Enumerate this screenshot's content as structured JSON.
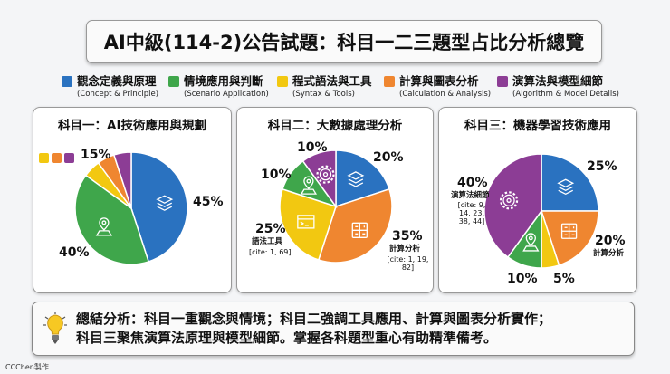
{
  "title": "AI中級(114-2)公告試題：科目一二三題型占比分析總覽",
  "legend": [
    {
      "zh": "觀念定義與原理",
      "en": "(Concept & Principle)",
      "color": "#2a72c0"
    },
    {
      "zh": "情境應用與判斷",
      "en": "(Scenario Application)",
      "color": "#3fa64b"
    },
    {
      "zh": "程式語法與工具",
      "en": "(Syntax & Tools)",
      "color": "#f2c811"
    },
    {
      "zh": "計算與圖表分析",
      "en": "(Calculation & Analysis)",
      "color": "#ef8630"
    },
    {
      "zh": "演算法與模型細節",
      "en": "(Algorithm & Model Details)",
      "color": "#8c3d95"
    }
  ],
  "chart_data": [
    {
      "type": "pie",
      "title": "科目一：AI技術應用與規劃",
      "categories": [
        "觀念定義與原理",
        "情境應用與判斷",
        "程式語法與工具",
        "計算與圖表分析",
        "演算法與模型細節"
      ],
      "values": [
        45,
        40,
        5,
        5,
        5
      ],
      "order": [
        0,
        1,
        2,
        3,
        4
      ],
      "labels": {
        "blue": "45%",
        "green": "40%",
        "combined": "15%"
      }
    },
    {
      "type": "pie",
      "title": "科目二：大數據處理分析",
      "categories": [
        "觀念定義與原理",
        "計算與圖表分析",
        "程式語法與工具",
        "情境應用與判斷",
        "演算法與模型細節"
      ],
      "values": [
        20,
        35,
        25,
        10,
        10
      ],
      "labels": {
        "blue": "20%",
        "orange": "35%",
        "orange_sub": "計算分析",
        "orange_cite": "[cite: 1, 19, 82]",
        "yellow": "25%",
        "yellow_sub": "語法工具",
        "yellow_cite": "[cite: 1, 69]",
        "green": "10%",
        "purple": "10%"
      }
    },
    {
      "type": "pie",
      "title": "科目三：機器學習技術應用",
      "categories": [
        "觀念定義與原理",
        "計算與圖表分析",
        "程式語法與工具",
        "情境應用與判斷",
        "演算法與模型細節"
      ],
      "values": [
        25,
        20,
        5,
        10,
        40
      ],
      "labels": {
        "blue": "25%",
        "orange": "20%",
        "orange_sub": "計算分析",
        "yellow": "5%",
        "green": "10%",
        "purple": "40%",
        "purple_sub": "演算法細節",
        "purple_cite": "[cite: 9, 14, 23, 38, 44]"
      }
    }
  ],
  "colors": {
    "觀念定義與原理": "#2a72c0",
    "情境應用與判斷": "#3fa64b",
    "程式語法與工具": "#f2c811",
    "計算與圖表分析": "#ef8630",
    "演算法與模型細節": "#8c3d95"
  },
  "summary": {
    "line1": "總結分析：科目一重觀念與情境；科目二強調工具應用、計算與圖表分析實作；",
    "line2": "科目三聚焦演算法原理與模型細節。掌握各科題型重心有助精準備考。",
    "icon": "lightbulb-icon"
  },
  "footer": "CCChen製作"
}
